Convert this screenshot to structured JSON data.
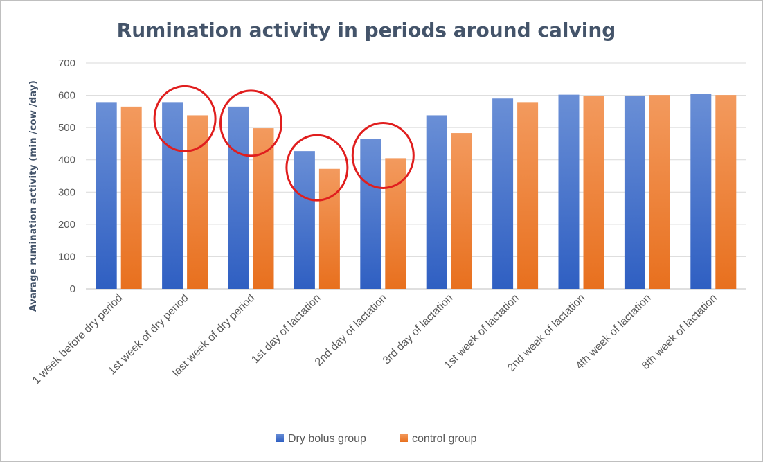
{
  "chart_data": {
    "type": "bar",
    "title": "Rumination activity in periods around calving",
    "xlabel": "",
    "ylabel": "Avarage rumination activity  (min /cow /day)",
    "ylim": [
      0,
      700
    ],
    "yticks": [
      0,
      100,
      200,
      300,
      400,
      500,
      600,
      700
    ],
    "grid": true,
    "legend_position": "bottom",
    "categories": [
      "1 week before dry period",
      "1st week of dry period",
      "last week of dry period",
      "1st day of lactation",
      "2nd day of lactation",
      "3rd day of lactation",
      "1st week of lactation",
      "2nd week of lactation",
      "4th week of lactation",
      "8th week of lactation"
    ],
    "series": [
      {
        "name": "Dry bolus group",
        "color": "#4472c4",
        "values": [
          579,
          579,
          565,
          427,
          465,
          538,
          590,
          602,
          598,
          605
        ]
      },
      {
        "name": "control group",
        "color": "#ed7d31",
        "values": [
          565,
          538,
          498,
          372,
          405,
          483,
          579,
          599,
          601,
          601
        ]
      }
    ],
    "annotations": [
      {
        "type": "circle",
        "color": "#e01e1e",
        "category_index": 1
      },
      {
        "type": "circle",
        "color": "#e01e1e",
        "category_index": 2
      },
      {
        "type": "circle",
        "color": "#e01e1e",
        "category_index": 3
      },
      {
        "type": "circle",
        "color": "#e01e1e",
        "category_index": 4
      }
    ]
  }
}
